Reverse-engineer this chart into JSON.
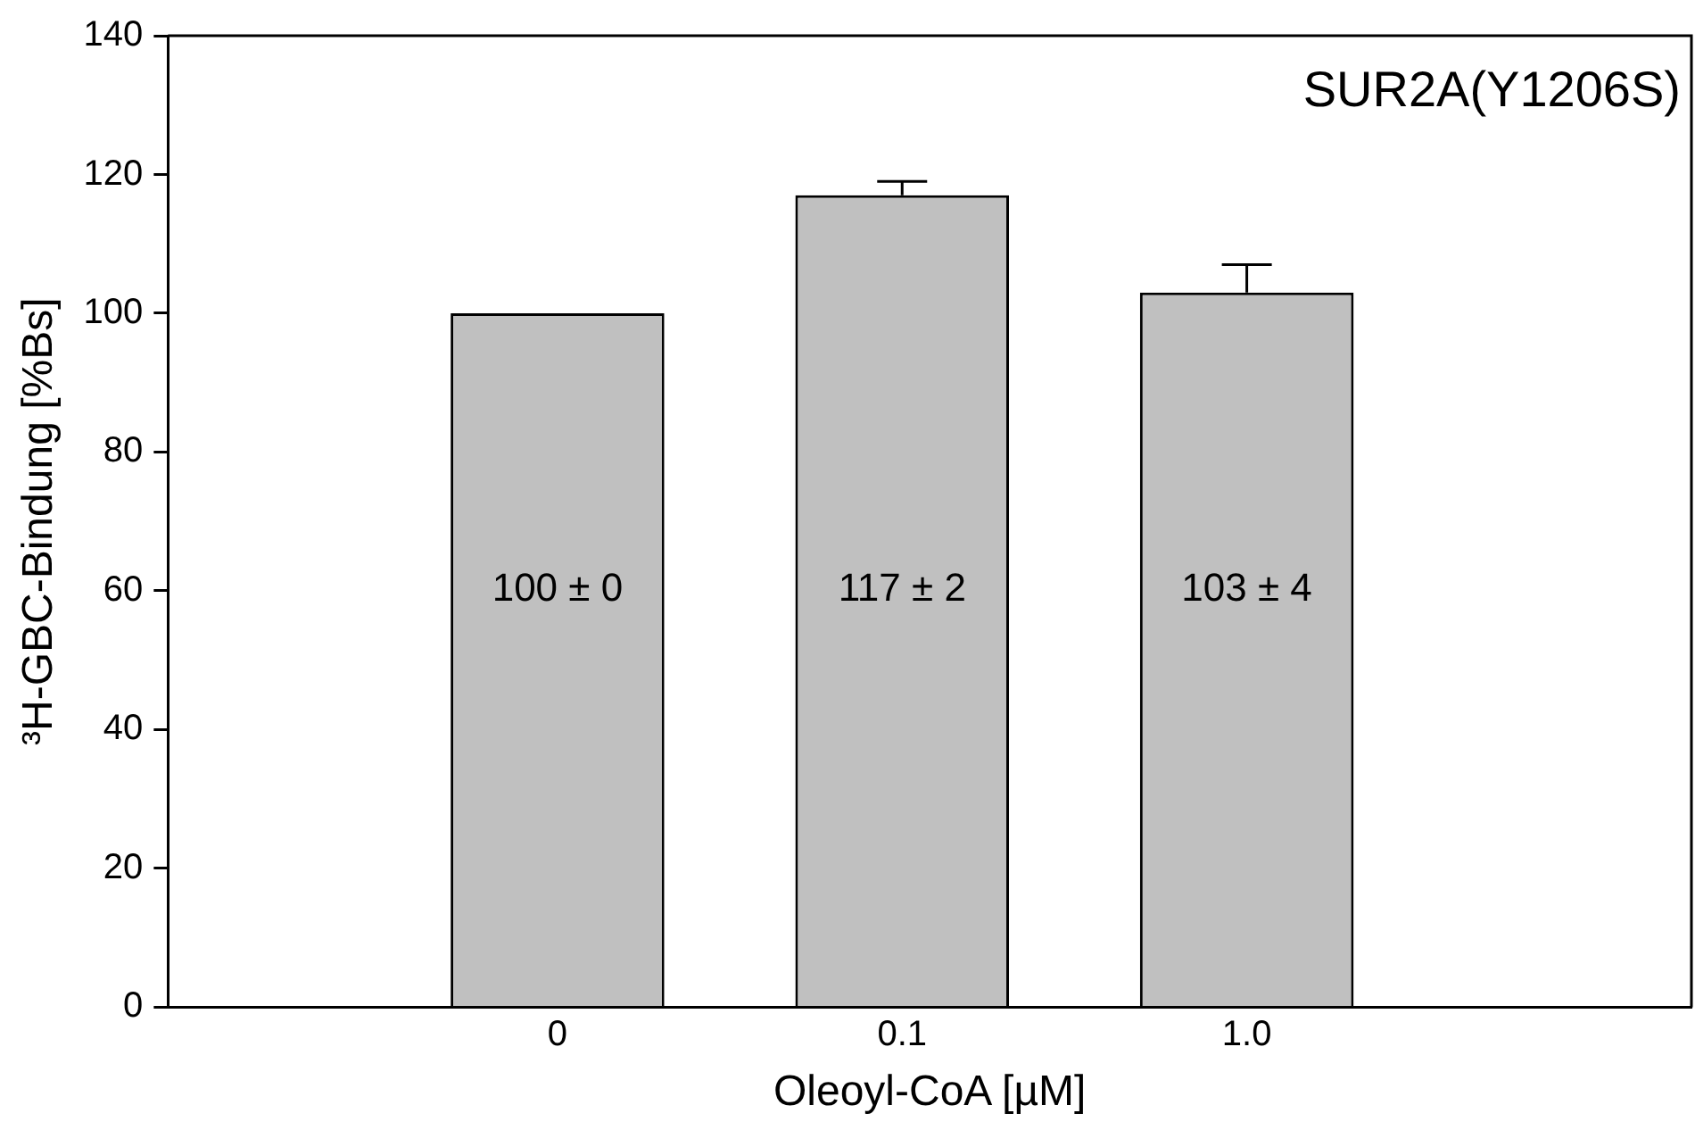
{
  "chart_data": {
    "type": "bar",
    "xlabel": "Oleoyl-CoA [µM]",
    "ylabel": "³H-GBC-Bindung [%Bs]",
    "categories": [
      "0",
      "0.1",
      "1.0"
    ],
    "values": [
      100,
      117,
      103
    ],
    "errors": [
      0,
      2,
      4
    ],
    "value_labels": [
      "100 ± 0",
      "117 ± 2",
      "103 ± 4"
    ],
    "color": "#c0c0c0",
    "ylim": [
      0,
      140
    ],
    "yticks": [
      0,
      20,
      40,
      60,
      80,
      100,
      120,
      140
    ],
    "grid": false,
    "legend": false,
    "annotations": [
      "SUR2A(Y1206S)"
    ]
  }
}
